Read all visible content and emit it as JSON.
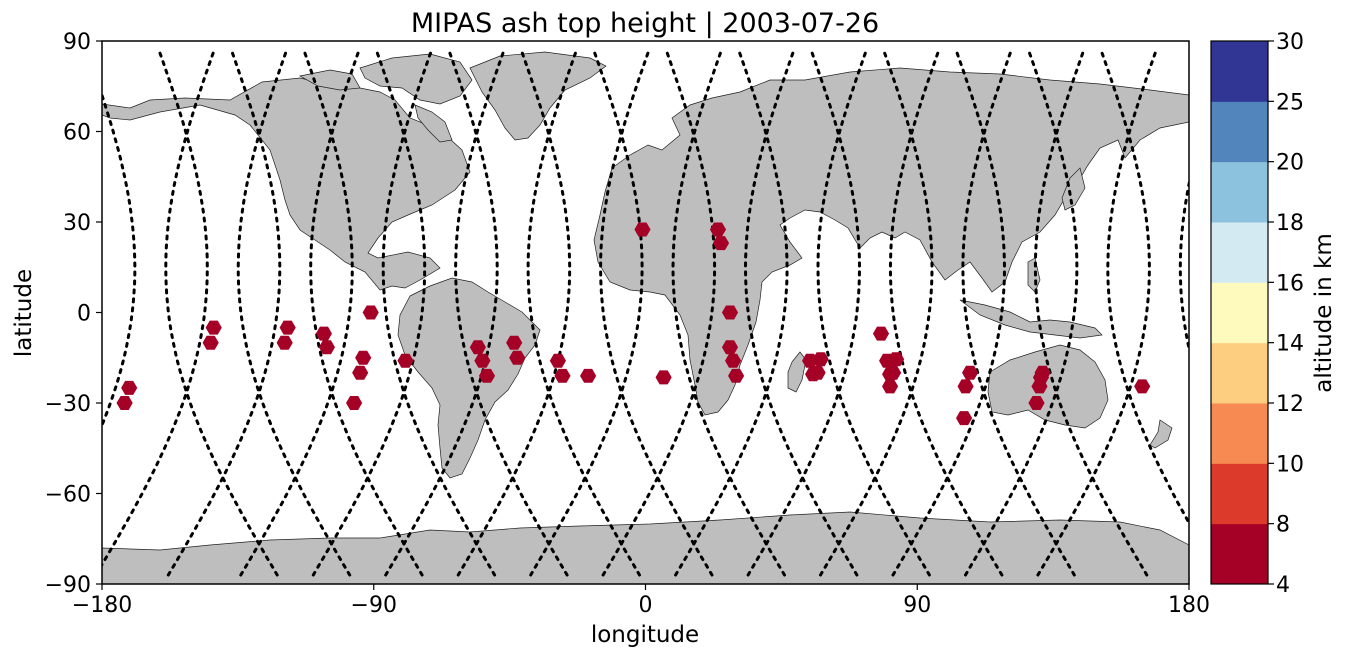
{
  "chart_data": {
    "type": "scatter",
    "title": "MIPAS ash top height | 2003-07-26",
    "xlabel": "longitude",
    "ylabel": "latitude",
    "xlim": [
      -180,
      180
    ],
    "ylim": [
      -90,
      90
    ],
    "xticks": [
      -180,
      -90,
      0,
      90,
      180
    ],
    "yticks": [
      -90,
      -60,
      -30,
      0,
      30,
      60,
      90
    ],
    "xtick_labels": [
      "−180",
      "−90",
      "0",
      "90",
      "180"
    ],
    "ytick_labels": [
      "−90",
      "−60",
      "−30",
      "0",
      "30",
      "60",
      "90"
    ],
    "projection": "plate-carree",
    "land_color": "#bebebe",
    "track_color": "#000000",
    "marker": "hexagon",
    "marker_color": "#a50026",
    "grid": false,
    "colorbar": {
      "label": "altitude in km",
      "boundaries": [
        4,
        8,
        10,
        12,
        14,
        16,
        18,
        20,
        25,
        30
      ],
      "tick_labels": [
        "4",
        "8",
        "10",
        "12",
        "14",
        "16",
        "18",
        "20",
        "25",
        "30"
      ],
      "colors": [
        "#a50026",
        "#d73027",
        "#f46d43",
        "#fdae61",
        "#fee090",
        "#ffffbf",
        "#e0f3f8",
        "#abd9e9",
        "#74add1",
        "#4575b4",
        "#313695"
      ],
      "colors_shown": [
        "#a50026",
        "#dc3b2b",
        "#f68a52",
        "#fdcd80",
        "#fefabe",
        "#d3eaf2",
        "#8dc2de",
        "#5285bc",
        "#313695"
      ],
      "placement": "right"
    },
    "ash_points": [
      {
        "lon": -171,
        "lat": -25
      },
      {
        "lon": -172.5,
        "lat": -30
      },
      {
        "lon": -143,
        "lat": -5
      },
      {
        "lon": -144,
        "lat": -10
      },
      {
        "lon": -118.5,
        "lat": -5
      },
      {
        "lon": -119.5,
        "lat": -10
      },
      {
        "lon": -106.5,
        "lat": -7
      },
      {
        "lon": -105.5,
        "lat": -11.5
      },
      {
        "lon": -91,
        "lat": 0
      },
      {
        "lon": -93.5,
        "lat": -15
      },
      {
        "lon": -94.5,
        "lat": -20
      },
      {
        "lon": -96.5,
        "lat": -30
      },
      {
        "lon": -79.5,
        "lat": -16
      },
      {
        "lon": -55.5,
        "lat": -11.5
      },
      {
        "lon": -54,
        "lat": -16
      },
      {
        "lon": -52.5,
        "lat": -21
      },
      {
        "lon": -43.5,
        "lat": -10
      },
      {
        "lon": -42.5,
        "lat": -15
      },
      {
        "lon": -29,
        "lat": -16
      },
      {
        "lon": -27.5,
        "lat": -21
      },
      {
        "lon": -19,
        "lat": -21
      },
      {
        "lon": -1,
        "lat": 27.5
      },
      {
        "lon": 6,
        "lat": -21.5
      },
      {
        "lon": 24,
        "lat": 27.5
      },
      {
        "lon": 25,
        "lat": 23
      },
      {
        "lon": 28,
        "lat": 0
      },
      {
        "lon": 28,
        "lat": -11.5
      },
      {
        "lon": 29,
        "lat": -16
      },
      {
        "lon": 30,
        "lat": -21
      },
      {
        "lon": 54.5,
        "lat": -16
      },
      {
        "lon": 58,
        "lat": -15.5
      },
      {
        "lon": 55.5,
        "lat": -20.5
      },
      {
        "lon": 57,
        "lat": -20
      },
      {
        "lon": 78,
        "lat": -7
      },
      {
        "lon": 80,
        "lat": -16
      },
      {
        "lon": 83,
        "lat": -15.5
      },
      {
        "lon": 81,
        "lat": -20.5
      },
      {
        "lon": 82,
        "lat": -20
      },
      {
        "lon": 81,
        "lat": -24.5
      },
      {
        "lon": 107.5,
        "lat": -20
      },
      {
        "lon": 106,
        "lat": -24.5
      },
      {
        "lon": 105.5,
        "lat": -35
      },
      {
        "lon": 131.5,
        "lat": -20
      },
      {
        "lon": 131,
        "lat": -21.5
      },
      {
        "lon": 130.5,
        "lat": -24.5
      },
      {
        "lon": 129.5,
        "lat": -30
      },
      {
        "lon": 164.5,
        "lat": -24.5
      }
    ]
  }
}
